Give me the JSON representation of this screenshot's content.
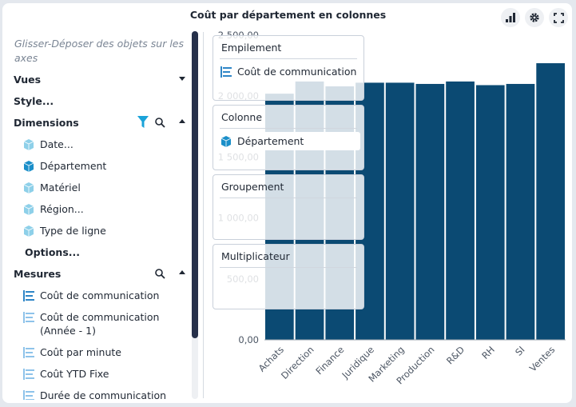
{
  "title": "Coût par département en colonnes",
  "toolbar": {
    "icons": [
      "bar-chart-icon",
      "gear-icon",
      "fullscreen-icon"
    ]
  },
  "sidebar": {
    "hint": "Glisser-Déposer des objets sur les axes",
    "vues": "Vues",
    "style": "Style...",
    "dimensions": {
      "label": "Dimensions",
      "items": [
        "Date...",
        "Département",
        "Matériel",
        "Région...",
        "Type de ligne"
      ],
      "options": "Options..."
    },
    "mesures": {
      "label": "Mesures",
      "items": [
        "Coût de communication",
        "Coût de communication (Année - 1)",
        "Coût par minute",
        "Coût YTD Fixe",
        "Durée de communication"
      ]
    }
  },
  "dropzones": {
    "empilement": {
      "title": "Empilement",
      "chip": "Coût de communication"
    },
    "colonne": {
      "title": "Colonne",
      "chip": "Département"
    },
    "groupement": {
      "title": "Groupement"
    },
    "multiplicateur": {
      "title": "Multiplicateur"
    }
  },
  "colors": {
    "bar": "#0b4a73",
    "dimension_icon": "#8ed0e9",
    "dimension_icon_active": "#1b8fc9",
    "measure_icon": "#2f86c7",
    "scroll_thumb": "#26304a",
    "filter": "#1aa3d9"
  },
  "chart_data": {
    "type": "bar",
    "title": "Coût par département en colonnes",
    "categories": [
      "Achats",
      "Direction",
      "Finance",
      "Juridique",
      "Marketing",
      "Production",
      "R&D",
      "RH",
      "SI",
      "Ventes"
    ],
    "series": [
      {
        "name": "Coût de communication",
        "values": [
          2020,
          2120,
          2080,
          2110,
          2110,
          2100,
          2120,
          2090,
          2100,
          2270
        ]
      }
    ],
    "ylim": [
      0,
      2500
    ],
    "yticks": [
      0,
      500,
      1000,
      1500,
      2000,
      2500
    ],
    "ytick_labels": [
      "0,00",
      "500,00",
      "1 000,00",
      "1 500,00",
      "2 000,00",
      "2 500,00"
    ],
    "xlabel": "",
    "ylabel": ""
  }
}
